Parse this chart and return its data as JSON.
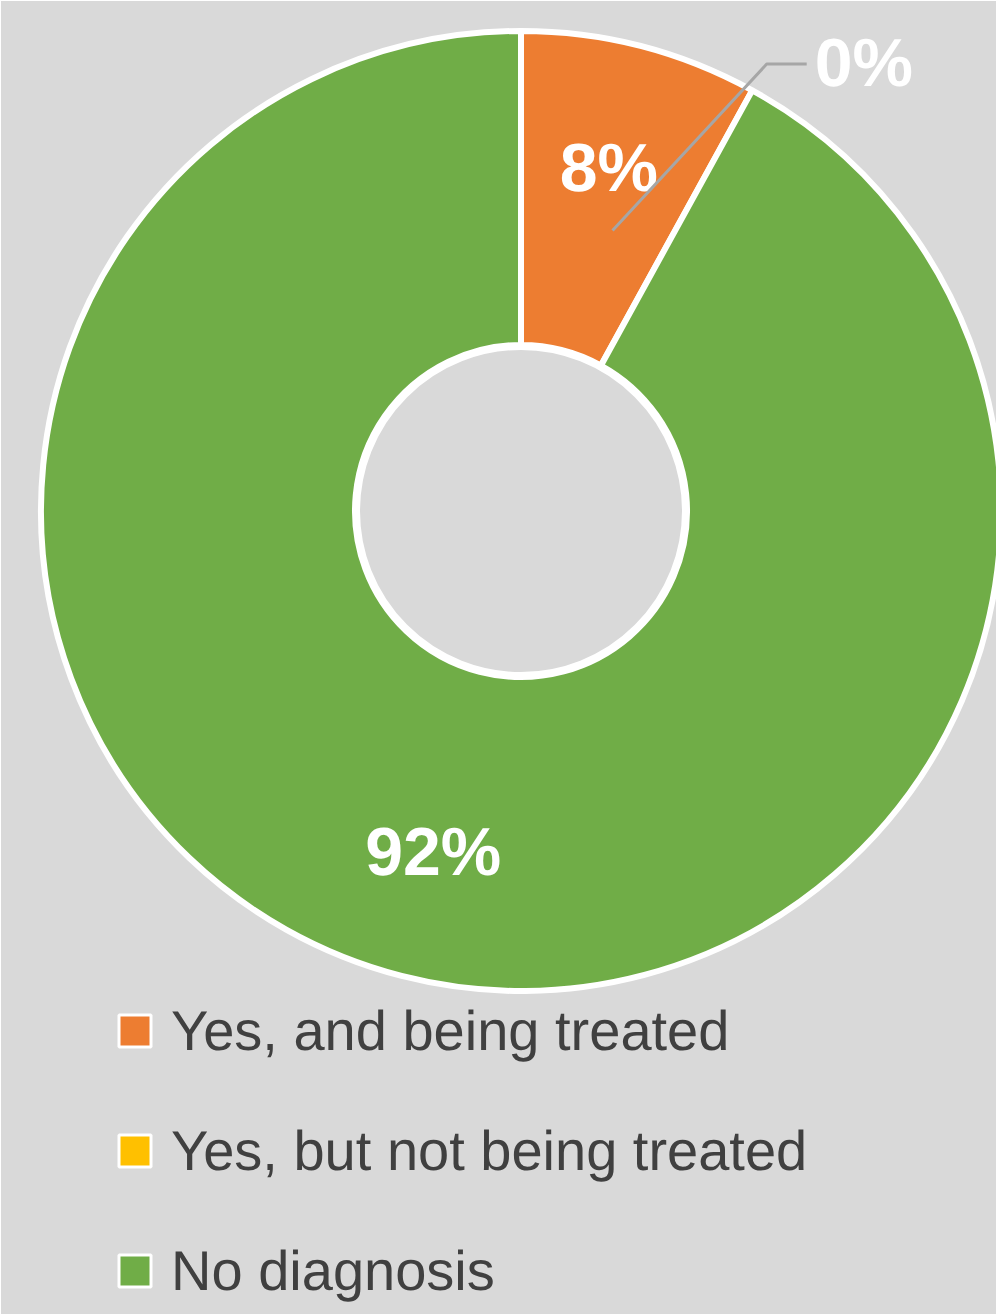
{
  "chart_data": {
    "type": "donut",
    "categories": [
      "Yes, and being treated",
      "Yes, but not being treated",
      "No diagnosis"
    ],
    "values": [
      8,
      0,
      92
    ],
    "colors": [
      "#ed7d31",
      "#ffc000",
      "#70ad47"
    ],
    "value_labels": [
      "8%",
      "0%",
      "92%"
    ],
    "legend": "bottom"
  }
}
